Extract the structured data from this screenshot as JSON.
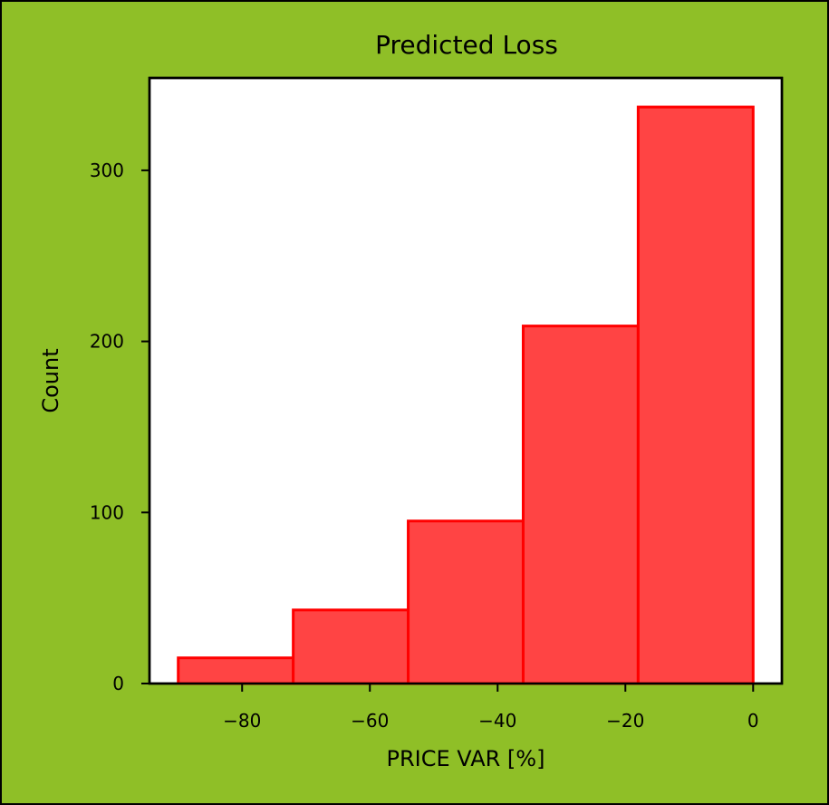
{
  "chart_data": {
    "type": "bar",
    "title": "Predicted Loss",
    "xlabel": "PRICE VAR [%]",
    "ylabel": "Count",
    "bins": [
      {
        "x0": -90,
        "x1": -72,
        "count": 15
      },
      {
        "x0": -72,
        "x1": -54,
        "count": 43
      },
      {
        "x0": -54,
        "x1": -36,
        "count": 95
      },
      {
        "x0": -36,
        "x1": -18,
        "count": 209
      },
      {
        "x0": -18,
        "x1": 0,
        "count": 337
      }
    ],
    "xlim": [
      -94.5,
      4.5
    ],
    "ylim": [
      0,
      354
    ],
    "xticks": [
      -80,
      -60,
      -40,
      -20,
      0
    ],
    "xtick_labels": [
      "−80",
      "−60",
      "−40",
      "−20",
      "0"
    ],
    "yticks": [
      0,
      100,
      200,
      300
    ],
    "ytick_labels": [
      "0",
      "100",
      "200",
      "300"
    ],
    "grid": false,
    "colors": {
      "background": "#8fbf27",
      "plot_area": "#ffffff",
      "bar_fill": "#ff4444",
      "bar_edge": "#ff0000",
      "axis": "#000000"
    }
  }
}
